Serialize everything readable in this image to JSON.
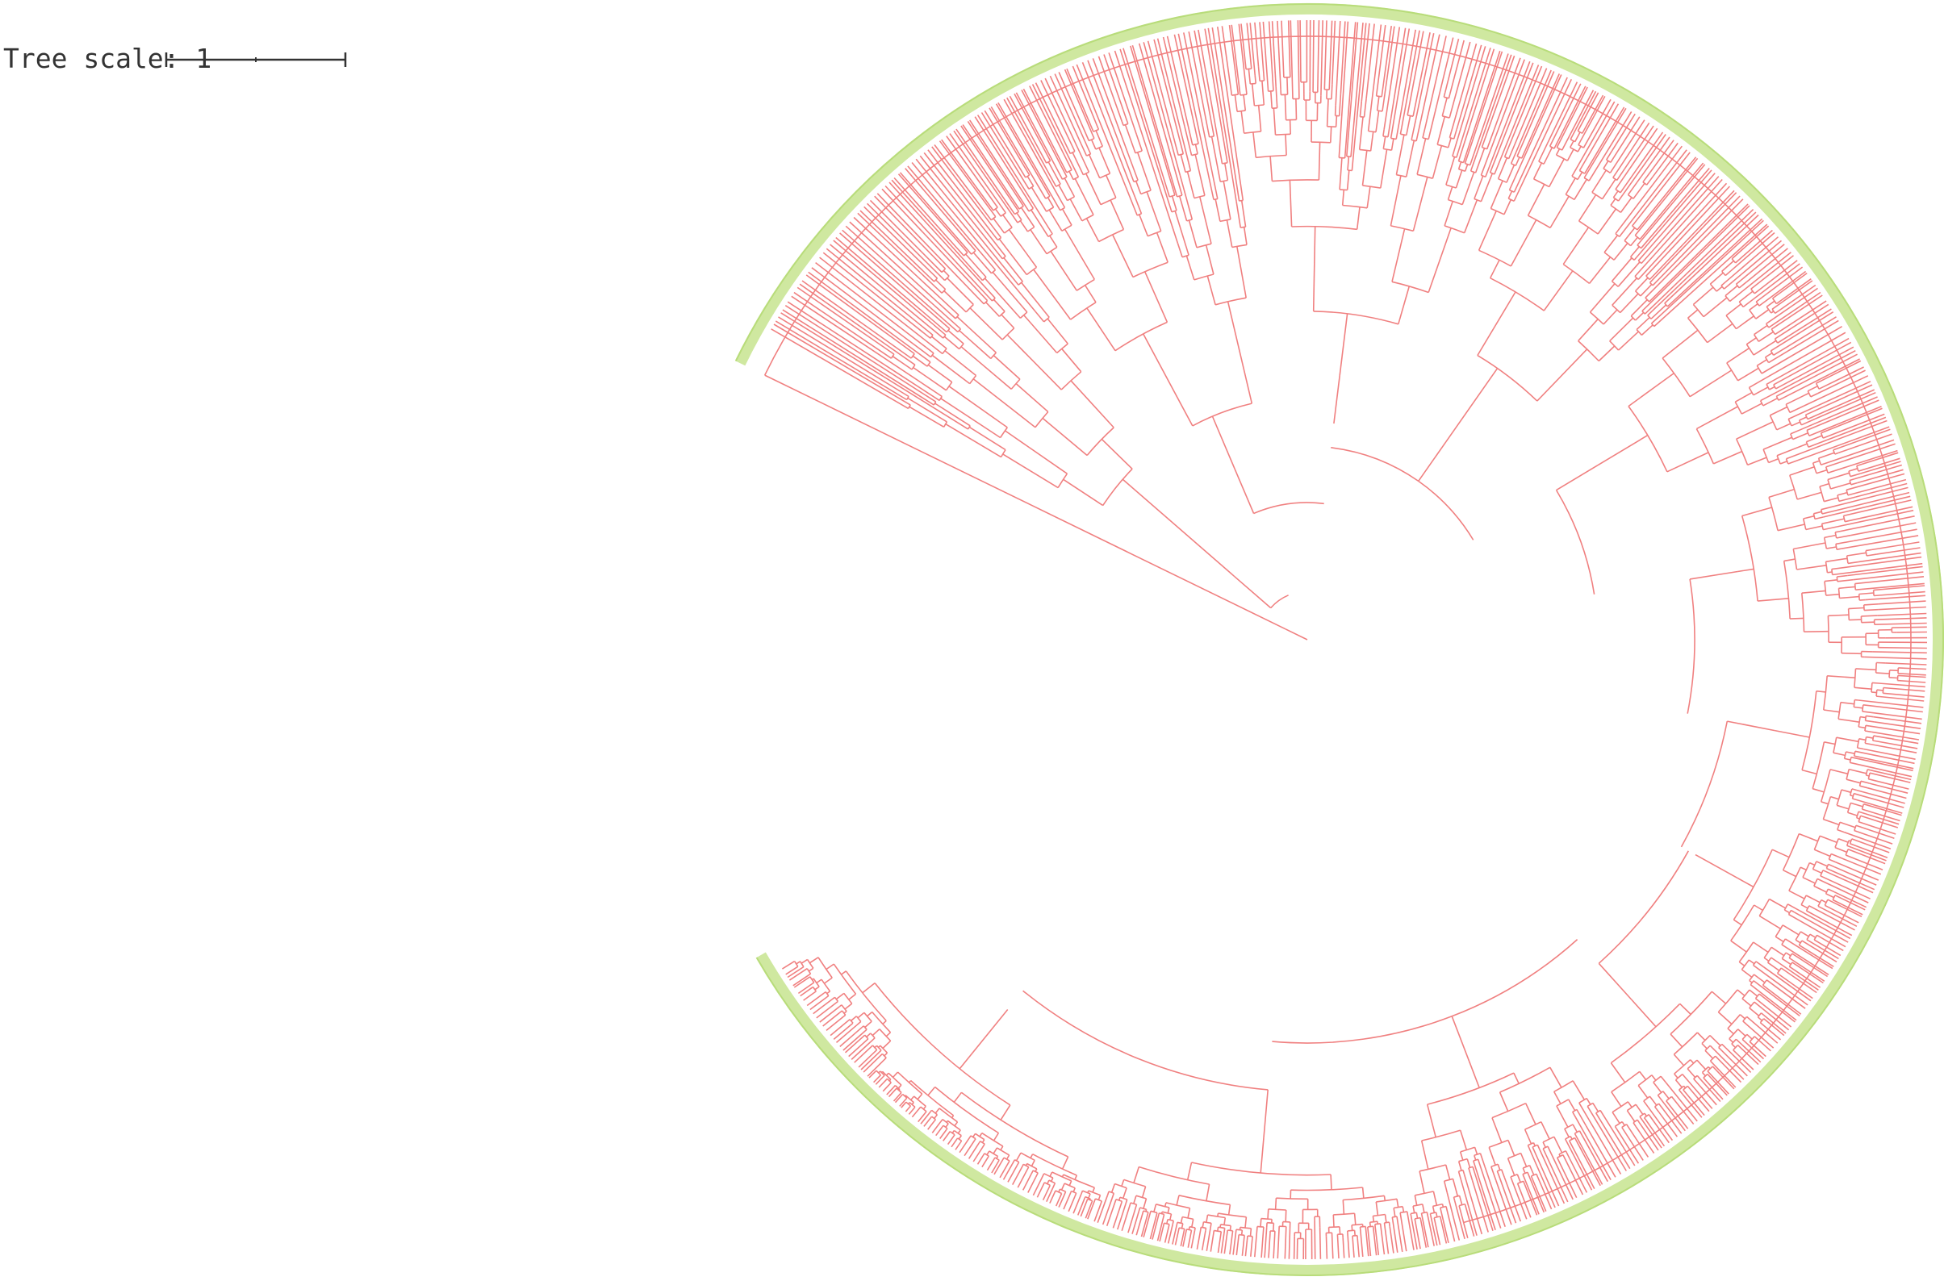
{
  "scale_legend": {
    "label": "Tree scale: 1",
    "value": 1
  },
  "colors": {
    "branch": "#f08080",
    "branch_fill": "#f6b3ae",
    "annotation_ring": "#cfe8a0",
    "annotation_ring_edge": "#b8dc7a",
    "text": "#333333"
  },
  "tree": {
    "layout": "circular",
    "ring_gap": "upper-left",
    "leaf_labels_shown": false
  }
}
